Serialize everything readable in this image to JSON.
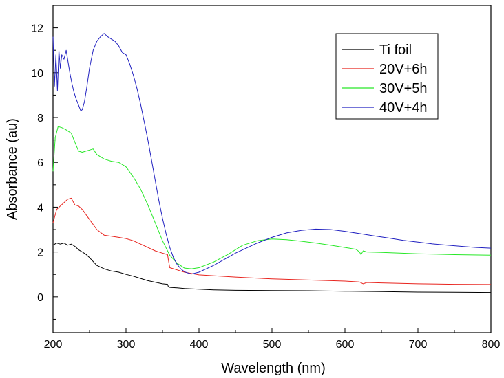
{
  "chart_data": {
    "type": "line",
    "title": "",
    "xlabel": "Wavelength (nm)",
    "ylabel": "Absorbance (au)",
    "xlim": [
      200,
      800
    ],
    "ylim": [
      -1.6,
      13.0
    ],
    "xticks": [
      200,
      300,
      400,
      500,
      600,
      700,
      800
    ],
    "yticks": [
      0,
      2,
      4,
      6,
      8,
      10,
      12
    ],
    "grid": false,
    "legend_position": "top-right",
    "series": [
      {
        "name": "Ti foil",
        "color": "#000000",
        "x": [
          200,
          205,
          210,
          215,
          220,
          225,
          230,
          235,
          240,
          245,
          250,
          260,
          270,
          280,
          290,
          300,
          310,
          320,
          330,
          340,
          350,
          357,
          358,
          360,
          370,
          380,
          400,
          420,
          450,
          500,
          550,
          600,
          650,
          700,
          750,
          800
        ],
        "y": [
          2.3,
          2.4,
          2.35,
          2.4,
          2.3,
          2.35,
          2.25,
          2.1,
          2.0,
          1.9,
          1.75,
          1.4,
          1.25,
          1.15,
          1.1,
          1.0,
          0.92,
          0.82,
          0.72,
          0.65,
          0.58,
          0.56,
          0.45,
          0.42,
          0.4,
          0.37,
          0.34,
          0.31,
          0.29,
          0.28,
          0.27,
          0.25,
          0.23,
          0.21,
          0.2,
          0.19
        ]
      },
      {
        "name": "20V+6h",
        "color": "#e8251f",
        "x": [
          200,
          205,
          210,
          215,
          220,
          225,
          230,
          235,
          240,
          250,
          260,
          270,
          280,
          290,
          300,
          310,
          320,
          330,
          340,
          350,
          355,
          357,
          358,
          360,
          370,
          380,
          400,
          450,
          500,
          550,
          600,
          620,
          625,
          630,
          650,
          700,
          750,
          800
        ],
        "y": [
          3.3,
          3.9,
          4.05,
          4.2,
          4.35,
          4.4,
          4.1,
          4.05,
          3.9,
          3.45,
          3.0,
          2.75,
          2.7,
          2.65,
          2.6,
          2.5,
          2.35,
          2.2,
          2.05,
          1.95,
          1.9,
          1.88,
          1.65,
          1.3,
          1.2,
          1.1,
          0.98,
          0.88,
          0.8,
          0.75,
          0.7,
          0.66,
          0.58,
          0.64,
          0.62,
          0.58,
          0.56,
          0.55
        ]
      },
      {
        "name": "30V+5h",
        "color": "#27e827",
        "x": [
          200,
          203,
          207,
          212,
          218,
          225,
          230,
          235,
          240,
          245,
          250,
          255,
          260,
          270,
          280,
          290,
          300,
          310,
          320,
          330,
          340,
          350,
          360,
          370,
          380,
          390,
          400,
          420,
          440,
          455,
          460,
          480,
          500,
          520,
          540,
          560,
          580,
          600,
          615,
          620,
          622,
          625,
          630,
          650,
          700,
          750,
          800
        ],
        "y": [
          5.6,
          7.1,
          7.6,
          7.55,
          7.45,
          7.3,
          6.9,
          6.5,
          6.45,
          6.5,
          6.55,
          6.6,
          6.35,
          6.15,
          6.05,
          6.0,
          5.8,
          5.35,
          4.8,
          4.1,
          3.3,
          2.5,
          1.85,
          1.5,
          1.28,
          1.25,
          1.3,
          1.55,
          1.9,
          2.2,
          2.3,
          2.5,
          2.58,
          2.55,
          2.48,
          2.4,
          2.3,
          2.2,
          2.12,
          2.0,
          1.88,
          2.05,
          2.0,
          1.98,
          1.92,
          1.88,
          1.86
        ]
      },
      {
        "name": "40V+4h",
        "color": "#2020c0",
        "x": [
          200,
          202,
          204,
          206,
          208,
          210,
          212,
          215,
          218,
          220,
          223,
          226,
          229,
          232,
          235,
          238,
          240,
          243,
          246,
          250,
          255,
          260,
          265,
          270,
          275,
          280,
          285,
          290,
          295,
          300,
          305,
          310,
          315,
          320,
          325,
          330,
          335,
          340,
          345,
          350,
          355,
          360,
          365,
          370,
          375,
          380,
          385,
          390,
          400,
          420,
          450,
          480,
          500,
          520,
          540,
          560,
          580,
          600,
          620,
          640,
          660,
          680,
          700,
          720,
          740,
          760,
          780,
          800
        ],
        "y": [
          11.6,
          9.4,
          10.8,
          9.2,
          11.0,
          10.2,
          10.8,
          10.6,
          11.0,
          10.6,
          10.0,
          9.5,
          9.1,
          8.8,
          8.55,
          8.3,
          8.35,
          8.7,
          9.3,
          10.2,
          11.0,
          11.4,
          11.6,
          11.75,
          11.6,
          11.5,
          11.4,
          11.2,
          10.9,
          10.8,
          10.4,
          9.9,
          9.3,
          8.6,
          7.8,
          7.0,
          6.1,
          5.2,
          4.3,
          3.5,
          2.8,
          2.2,
          1.75,
          1.45,
          1.25,
          1.12,
          1.06,
          1.02,
          1.1,
          1.4,
          1.95,
          2.4,
          2.65,
          2.85,
          2.96,
          3.02,
          3.0,
          2.92,
          2.82,
          2.72,
          2.62,
          2.52,
          2.44,
          2.36,
          2.3,
          2.25,
          2.2,
          2.17
        ]
      }
    ]
  }
}
